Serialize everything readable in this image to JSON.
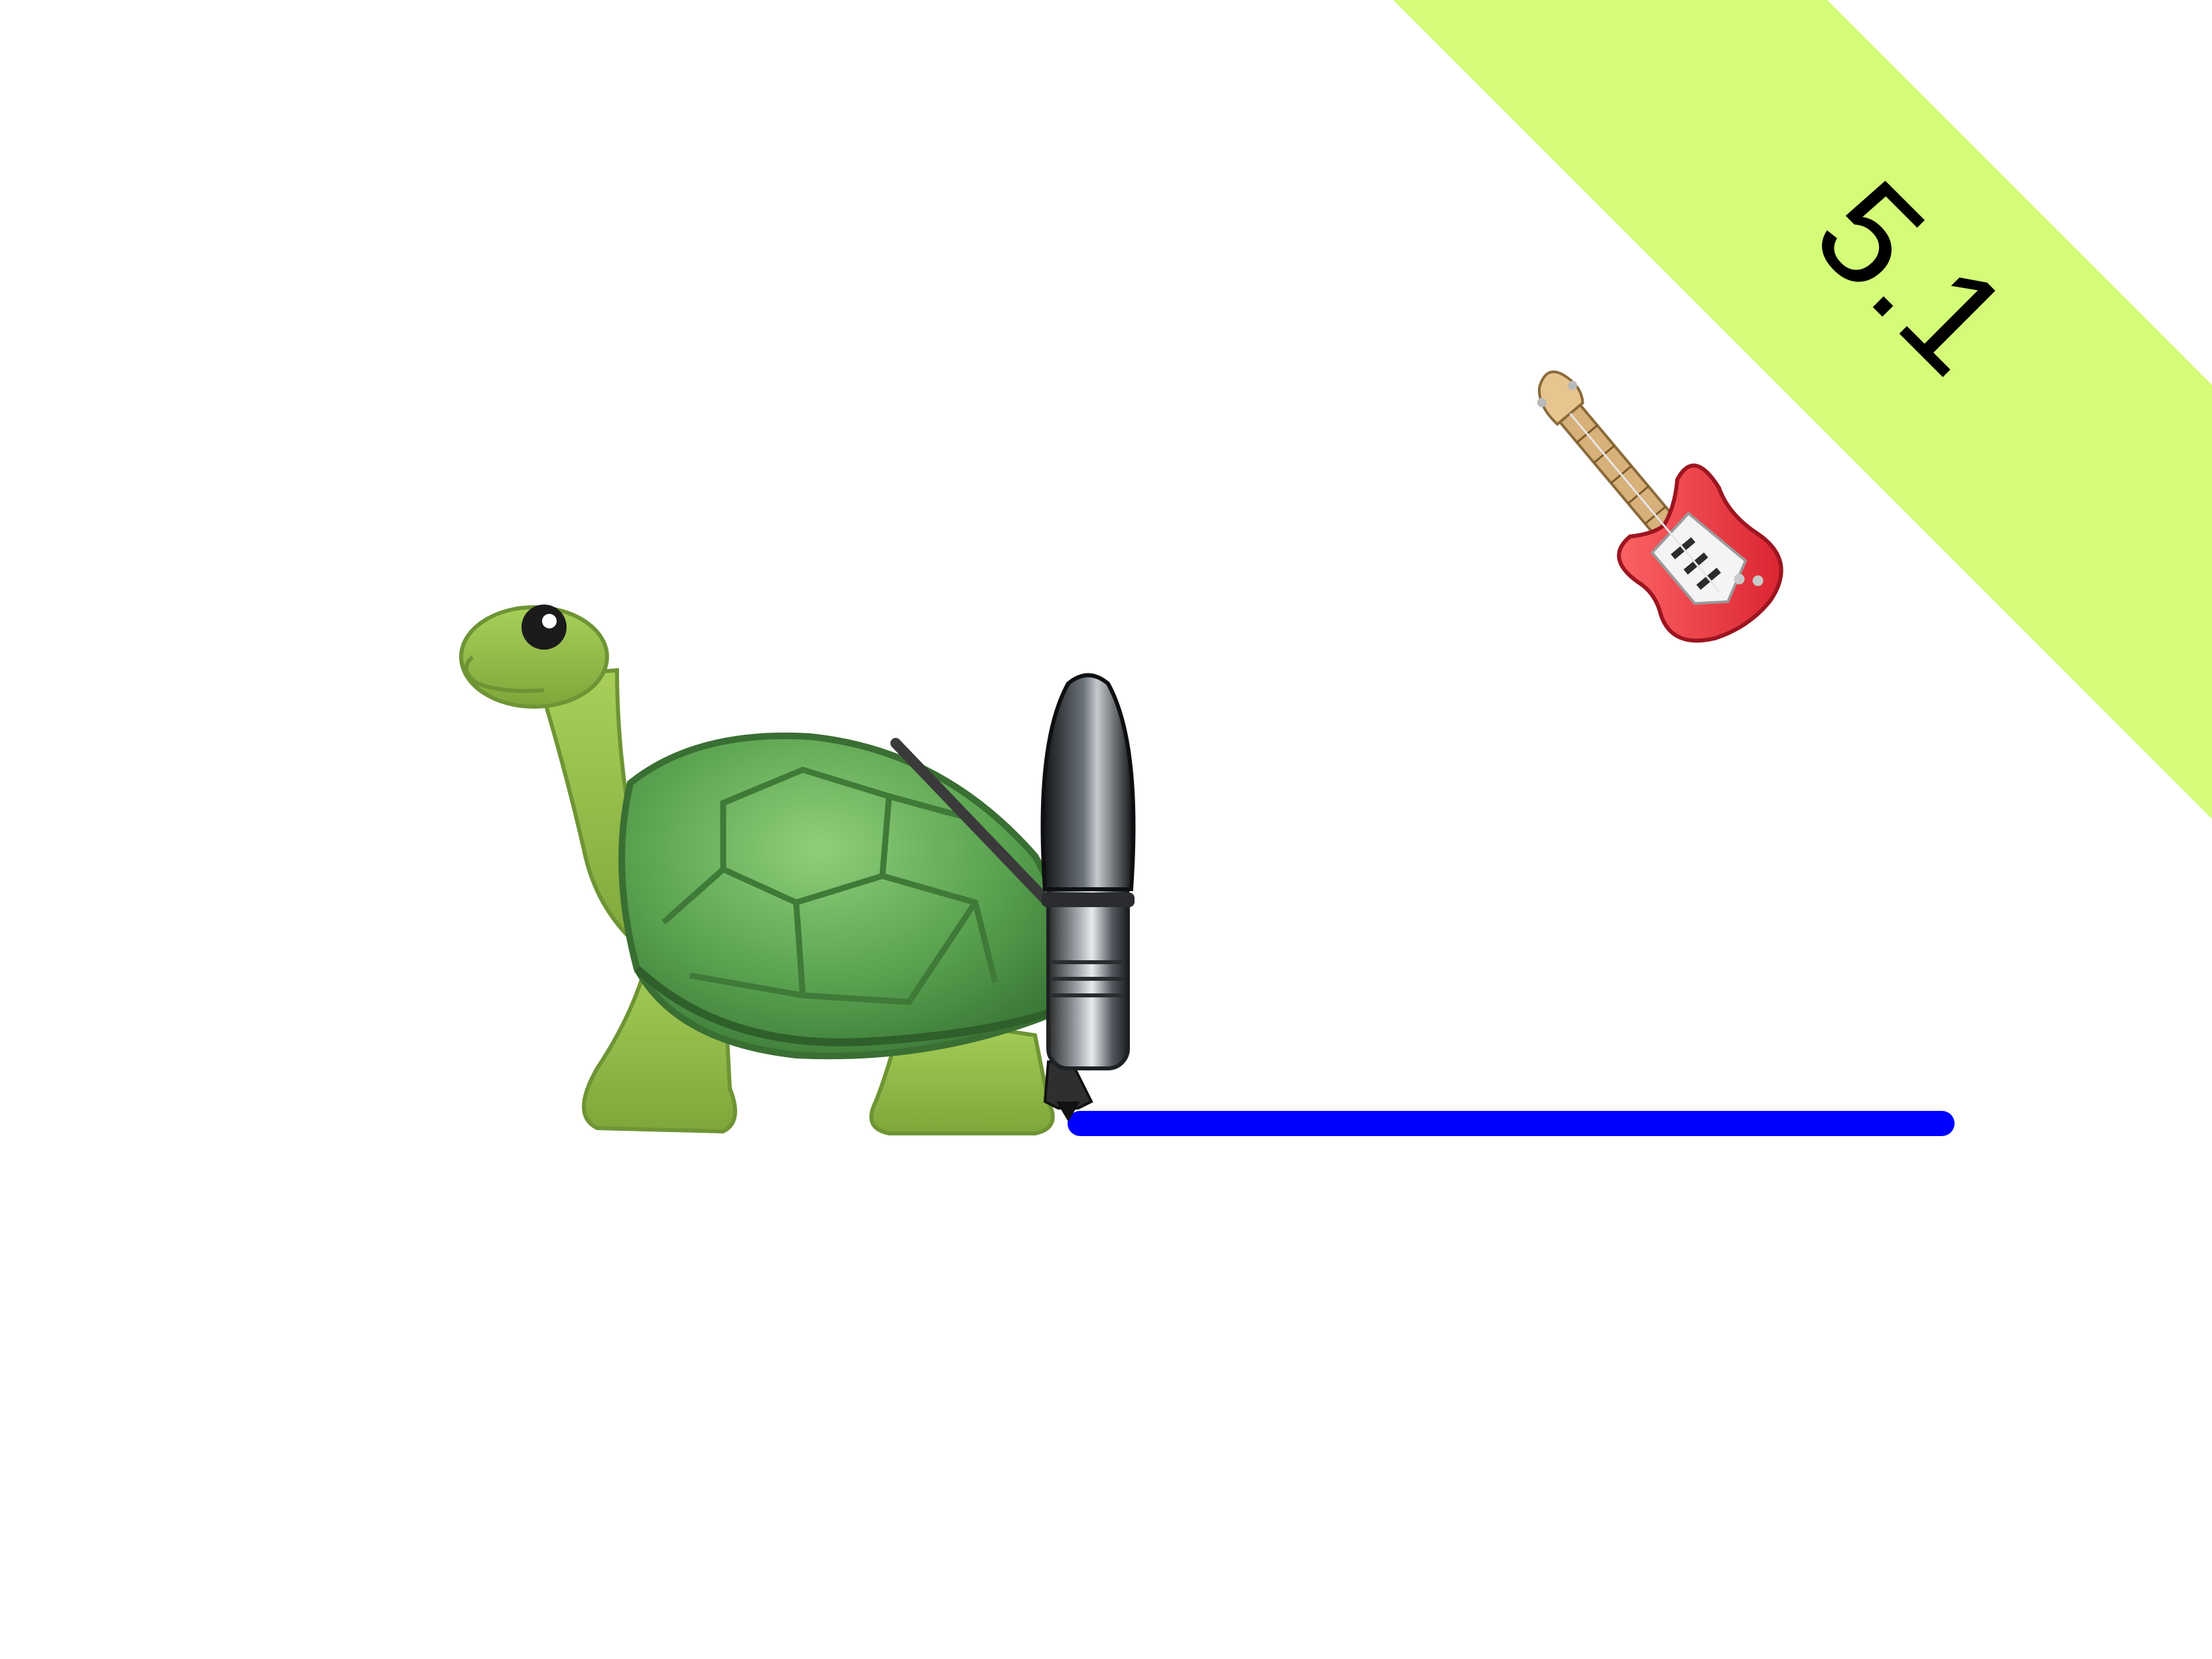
{
  "level_banner": {
    "label": "5.1",
    "color": "#d4fc79"
  },
  "turtle": {
    "icon": "turtle-icon",
    "has_pen": true
  },
  "drawn_line": {
    "color": "#0000ff"
  },
  "target": {
    "icon": "guitar-icon"
  }
}
